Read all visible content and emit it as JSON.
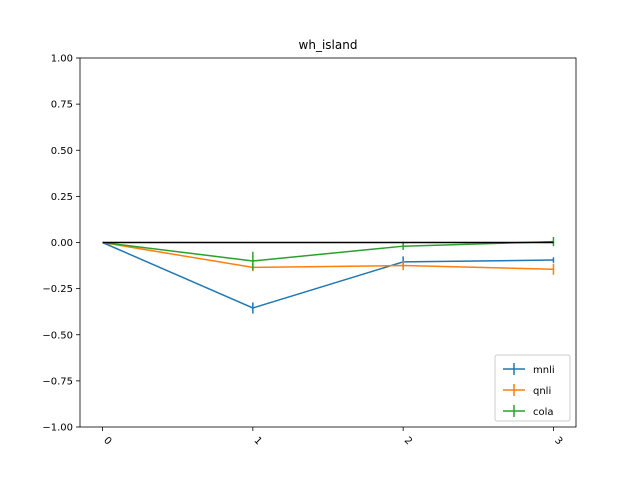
{
  "chart_data": {
    "type": "line",
    "title": "wh_island",
    "xlabel": "",
    "ylabel": "",
    "x": [
      0,
      1,
      2,
      3
    ],
    "x_tick_labels": [
      "0",
      "1",
      "2",
      "3"
    ],
    "y_tick_labels": [
      "1.00",
      "0.75",
      "0.50",
      "0.25",
      "0.00",
      "−0.25",
      "−0.50",
      "−0.75",
      "−1.00"
    ],
    "y_ticks": [
      1.0,
      0.75,
      0.5,
      0.25,
      0.0,
      -0.25,
      -0.5,
      -0.75,
      -1.0
    ],
    "xlim": [
      -0.15,
      3.15
    ],
    "ylim": [
      -1.0,
      1.0
    ],
    "grid": false,
    "legend_position": "lower-right",
    "reference_line": {
      "y": 0.0,
      "color": "#000000"
    },
    "series": [
      {
        "name": "mnli",
        "color": "#1f77b4",
        "values": [
          0.0,
          -0.355,
          -0.105,
          -0.095
        ],
        "errors": [
          0.0,
          0.03,
          0.03,
          0.015
        ]
      },
      {
        "name": "qnli",
        "color": "#ff7f0e",
        "values": [
          0.0,
          -0.135,
          -0.125,
          -0.145
        ],
        "errors": [
          0.0,
          0.02,
          0.025,
          0.03
        ]
      },
      {
        "name": "cola",
        "color": "#2ca02c",
        "values": [
          0.0,
          -0.1,
          -0.02,
          0.005
        ],
        "errors": [
          0.0,
          0.05,
          0.02,
          0.025
        ]
      }
    ]
  }
}
